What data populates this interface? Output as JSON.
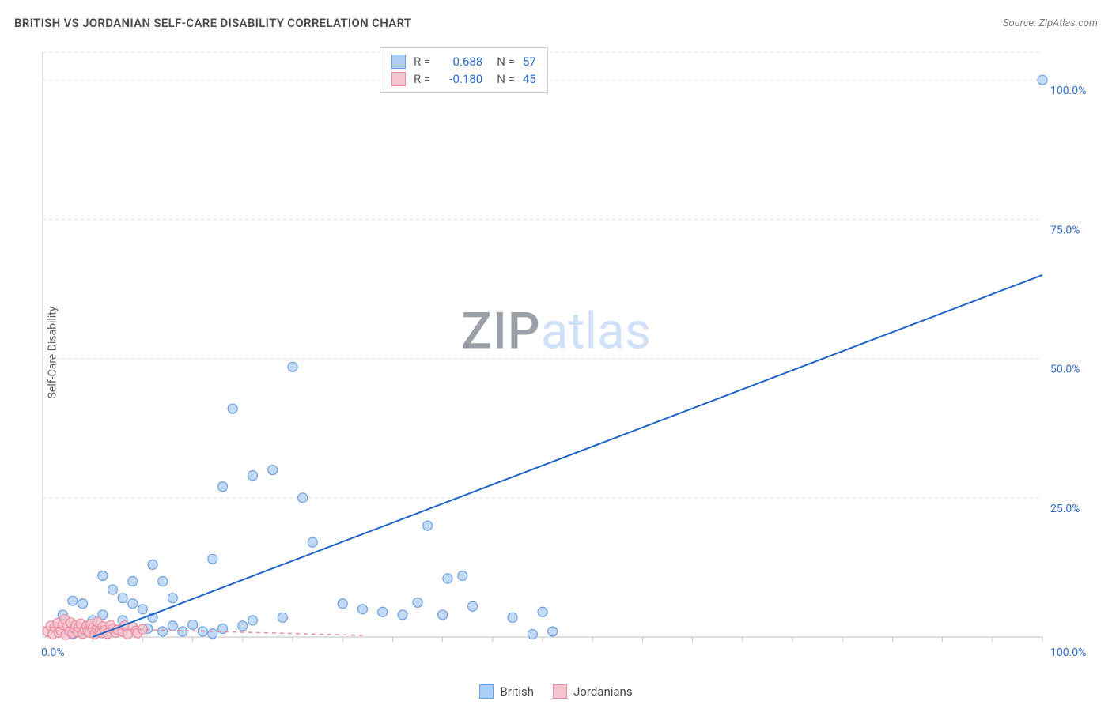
{
  "title": "BRITISH VS JORDANIAN SELF-CARE DISABILITY CORRELATION CHART",
  "source": "Source: ZipAtlas.com",
  "ylabel": "Self-Care Disability",
  "watermark_a": "ZIP",
  "watermark_b": "atlas",
  "chart": {
    "type": "scatter",
    "xlim": [
      0,
      100
    ],
    "ylim": [
      0,
      105
    ],
    "ytick_values": [
      25,
      50,
      75,
      100
    ],
    "ytick_labels": [
      "25.0%",
      "50.0%",
      "75.0%",
      "100.0%"
    ],
    "x_origin_label": "0.0%",
    "x_max_label": "100.0%",
    "background_color": "#ffffff",
    "grid_color": "#e4e4e4",
    "grid_dash": "4,4",
    "axis_line_color": "#bfbfbf",
    "tick_color": "#bfbfbf",
    "marker_radius": 6,
    "marker_stroke_width": 1.2,
    "series": [
      {
        "name": "British",
        "color_fill": "#aecdf2",
        "color_stroke": "#6ca0e3",
        "line_color": "#1f63c9",
        "line_width": 2,
        "line_dash": "",
        "r_label": "R =",
        "r_value": "0.688",
        "n_label": "N =",
        "n_value": "57",
        "trend": {
          "x1": 5,
          "y1": 0,
          "x2": 100,
          "y2": 65
        },
        "points": [
          [
            100,
            100
          ],
          [
            25,
            48.5
          ],
          [
            19,
            41
          ],
          [
            21,
            29
          ],
          [
            23,
            30
          ],
          [
            18,
            27
          ],
          [
            26,
            25
          ],
          [
            17,
            14
          ],
          [
            11,
            13
          ],
          [
            38.5,
            20
          ],
          [
            27,
            17
          ],
          [
            9,
            10
          ],
          [
            7,
            8.5
          ],
          [
            6,
            11
          ],
          [
            12,
            10
          ],
          [
            13,
            7
          ],
          [
            4,
            6
          ],
          [
            3,
            6.5
          ],
          [
            11,
            3.5
          ],
          [
            10,
            5
          ],
          [
            8,
            7
          ],
          [
            9,
            6
          ],
          [
            21,
            3
          ],
          [
            20,
            2
          ],
          [
            18,
            1.5
          ],
          [
            16,
            1
          ],
          [
            15,
            2.2
          ],
          [
            14,
            1
          ],
          [
            32,
            5
          ],
          [
            34,
            4.5
          ],
          [
            36,
            4
          ],
          [
            37.5,
            6.2
          ],
          [
            40.5,
            10.5
          ],
          [
            42,
            11
          ],
          [
            40,
            4
          ],
          [
            43,
            5.5
          ],
          [
            47,
            3.5
          ],
          [
            49,
            0.5
          ],
          [
            50,
            4.5
          ],
          [
            51,
            1
          ],
          [
            4,
            1
          ],
          [
            5,
            3
          ],
          [
            4.5,
            2
          ],
          [
            3,
            0.5
          ],
          [
            3.5,
            1.5
          ],
          [
            2,
            4
          ],
          [
            6,
            4
          ],
          [
            6.5,
            1
          ],
          [
            8,
            3
          ],
          [
            7,
            1.5
          ],
          [
            5.5,
            0.8
          ],
          [
            12,
            1
          ],
          [
            13,
            2
          ],
          [
            10.5,
            1.5
          ],
          [
            17,
            0.6
          ],
          [
            24,
            3.5
          ],
          [
            30,
            6
          ]
        ]
      },
      {
        "name": "Jordanians",
        "color_fill": "#f6c5cf",
        "color_stroke": "#ea8aa0",
        "line_color": "#ea8aa0",
        "line_width": 1.5,
        "line_dash": "5,5",
        "r_label": "R =",
        "r_value": "-0.180",
        "n_label": "N =",
        "n_value": "45",
        "trend": {
          "x1": 0,
          "y1": 1.8,
          "x2": 32,
          "y2": 0.3
        },
        "points": [
          [
            0.5,
            1
          ],
          [
            0.8,
            2
          ],
          [
            1.0,
            0.5
          ],
          [
            1.2,
            1.8
          ],
          [
            1.5,
            2.5
          ],
          [
            1.6,
            0.8
          ],
          [
            1.8,
            1.2
          ],
          [
            2.0,
            2.2
          ],
          [
            2.2,
            3.2
          ],
          [
            2.3,
            0.4
          ],
          [
            2.5,
            1.9
          ],
          [
            2.7,
            1.0
          ],
          [
            2.8,
            2.6
          ],
          [
            3.0,
            0.7
          ],
          [
            3.2,
            1.5
          ],
          [
            3.3,
            2.1
          ],
          [
            3.5,
            0.9
          ],
          [
            3.6,
            1.7
          ],
          [
            3.8,
            2.4
          ],
          [
            4.0,
            0.6
          ],
          [
            4.2,
            1.3
          ],
          [
            4.4,
            2.0
          ],
          [
            4.5,
            1.1
          ],
          [
            4.7,
            0.8
          ],
          [
            4.8,
            2.3
          ],
          [
            5.0,
            1.6
          ],
          [
            5.2,
            0.5
          ],
          [
            5.4,
            1.4
          ],
          [
            5.5,
            2.7
          ],
          [
            5.7,
            1.0
          ],
          [
            5.9,
            0.7
          ],
          [
            6.0,
            1.9
          ],
          [
            6.2,
            1.2
          ],
          [
            6.5,
            0.6
          ],
          [
            6.8,
            2.1
          ],
          [
            7.0,
            1.5
          ],
          [
            7.3,
            0.8
          ],
          [
            7.5,
            1.3
          ],
          [
            8.0,
            1.0
          ],
          [
            8.2,
            2.0
          ],
          [
            8.5,
            0.5
          ],
          [
            9.0,
            1.8
          ],
          [
            9.3,
            1.1
          ],
          [
            9.5,
            0.7
          ],
          [
            10,
            1.4
          ]
        ]
      }
    ]
  },
  "legend_bottom": [
    {
      "label": "British",
      "fill": "#aecdf2",
      "stroke": "#6ca0e3"
    },
    {
      "label": "Jordanians",
      "fill": "#f6c5cf",
      "stroke": "#ea8aa0"
    }
  ]
}
